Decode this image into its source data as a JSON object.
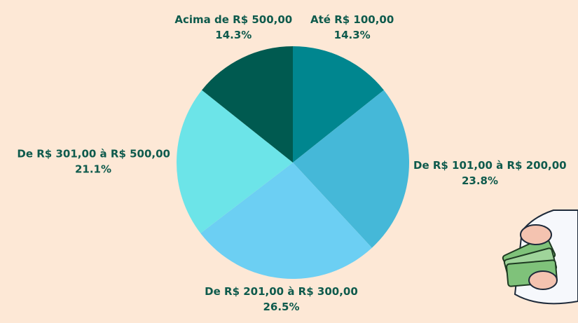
{
  "chart_data": {
    "type": "pie",
    "categories": [
      "Até R$ 100,00",
      "De R$ 101,00 à R$ 200,00",
      "De R$ 201,00 à R$ 300,00",
      "De R$ 301,00 à R$ 500,00",
      "Acima de R$ 500,00"
    ],
    "values": [
      14.3,
      23.8,
      26.5,
      21.1,
      14.3
    ],
    "value_labels": [
      "14.3%",
      "23.8%",
      "26.5%",
      "21.1%",
      "14.3%"
    ],
    "colors": [
      "#00868f",
      "#45b8d8",
      "#6ccff3",
      "#6ce4e8",
      "#005a50"
    ]
  }
}
